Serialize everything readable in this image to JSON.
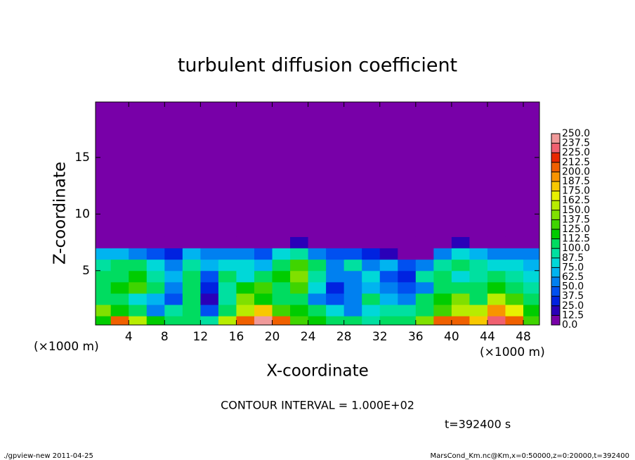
{
  "chart_data": {
    "type": "heatmap",
    "title": "turbulent diffusion coefficient",
    "x_label": "X-coordinate",
    "y_label": "Z-coordinate",
    "x_unit": "(×1000 m)",
    "y_unit": "(×1000 m)",
    "annotation": "CONTOUR INTERVAL = 1.000E+02",
    "time_label": "t=392400 s",
    "footer_left": "./gpview-new  2011-04-25",
    "footer_right": "MarsCond_Km.nc@Km,x=0:50000,z=0:20000,t=392400",
    "xlim": [
      0.3,
      49.8
    ],
    "ylim": [
      0.2,
      19.9
    ],
    "xticks": [
      4,
      8,
      12,
      16,
      20,
      24,
      28,
      32,
      36,
      40,
      44,
      48
    ],
    "yticks": [
      5,
      10,
      15
    ],
    "x_edges": [
      0.3,
      2,
      4,
      6,
      8,
      10,
      12,
      14,
      16,
      18,
      20,
      22,
      24,
      26,
      28,
      30,
      32,
      34,
      36,
      38,
      40,
      42,
      44,
      46,
      48,
      49.8
    ],
    "z_edges": [
      0.2,
      1,
      2,
      3,
      4,
      5,
      6,
      7,
      8,
      19.9
    ],
    "values": [
      [
        120,
        200,
        150,
        120,
        100,
        110,
        90,
        150,
        210,
        240,
        200,
        130,
        120,
        110,
        100,
        90,
        100,
        110,
        140,
        200,
        200,
        180,
        230,
        200,
        130
      ],
      [
        140,
        120,
        110,
        60,
        90,
        100,
        40,
        100,
        150,
        180,
        130,
        120,
        110,
        80,
        60,
        80,
        90,
        90,
        100,
        130,
        150,
        160,
        190,
        170,
        120
      ],
      [
        110,
        100,
        80,
        70,
        40,
        110,
        20,
        90,
        140,
        120,
        110,
        100,
        60,
        40,
        50,
        100,
        70,
        60,
        100,
        120,
        140,
        110,
        150,
        130,
        110
      ],
      [
        100,
        120,
        130,
        110,
        60,
        100,
        30,
        90,
        120,
        130,
        110,
        130,
        80,
        30,
        60,
        70,
        50,
        40,
        60,
        110,
        110,
        100,
        120,
        100,
        90
      ],
      [
        100,
        110,
        120,
        90,
        70,
        110,
        40,
        100,
        80,
        100,
        120,
        140,
        90,
        50,
        60,
        80,
        40,
        30,
        90,
        100,
        80,
        90,
        100,
        90,
        80
      ],
      [
        90,
        100,
        100,
        80,
        60,
        90,
        70,
        80,
        80,
        70,
        110,
        130,
        100,
        60,
        90,
        60,
        70,
        40,
        50,
        90,
        100,
        90,
        80,
        80,
        70
      ],
      [
        70,
        70,
        60,
        40,
        30,
        70,
        60,
        50,
        60,
        40,
        80,
        90,
        60,
        40,
        40,
        30,
        20,
        0,
        10,
        60,
        80,
        70,
        60,
        60,
        60
      ],
      [
        0,
        0,
        0,
        0,
        0,
        0,
        10,
        0,
        0,
        0,
        0,
        20,
        0,
        0,
        0,
        0,
        0,
        0,
        0,
        10,
        20,
        0,
        0,
        0,
        0
      ],
      [
        0,
        0,
        0,
        0,
        0,
        0,
        0,
        0,
        0,
        0,
        0,
        0,
        0,
        0,
        0,
        0,
        0,
        0,
        0,
        0,
        0,
        0,
        0,
        0,
        0
      ]
    ],
    "levels": [
      {
        "value": 0,
        "label": "0.0"
      },
      {
        "value": 12.5,
        "label": "12.5"
      },
      {
        "value": 25,
        "label": "25.0"
      },
      {
        "value": 37.5,
        "label": "37.5"
      },
      {
        "value": 50,
        "label": "50.0"
      },
      {
        "value": 62.5,
        "label": "62.5"
      },
      {
        "value": 75,
        "label": "75.0"
      },
      {
        "value": 87.5,
        "label": "87.5"
      },
      {
        "value": 100,
        "label": "100.0"
      },
      {
        "value": 112.5,
        "label": "112.5"
      },
      {
        "value": 125,
        "label": "125.0"
      },
      {
        "value": 137.5,
        "label": "137.5"
      },
      {
        "value": 150,
        "label": "150.0"
      },
      {
        "value": 162.5,
        "label": "162.5"
      },
      {
        "value": 175,
        "label": "175.0"
      },
      {
        "value": 187.5,
        "label": "187.5"
      },
      {
        "value": 200,
        "label": "200.0"
      },
      {
        "value": 212.5,
        "label": "212.5"
      },
      {
        "value": 225,
        "label": "225.0"
      },
      {
        "value": 237.5,
        "label": "237.5"
      },
      {
        "value": 250,
        "label": "250.0"
      }
    ],
    "colors": [
      "#7800a8",
      "#2a00b8",
      "#0022e0",
      "#0050f0",
      "#0080f0",
      "#00b4f0",
      "#00d8d8",
      "#00e0a0",
      "#00dc60",
      "#00cc00",
      "#40d400",
      "#80e000",
      "#b8ec00",
      "#e8f000",
      "#f8c800",
      "#f89400",
      "#f06000",
      "#e82800",
      "#f06070",
      "#f09a9a"
    ]
  }
}
